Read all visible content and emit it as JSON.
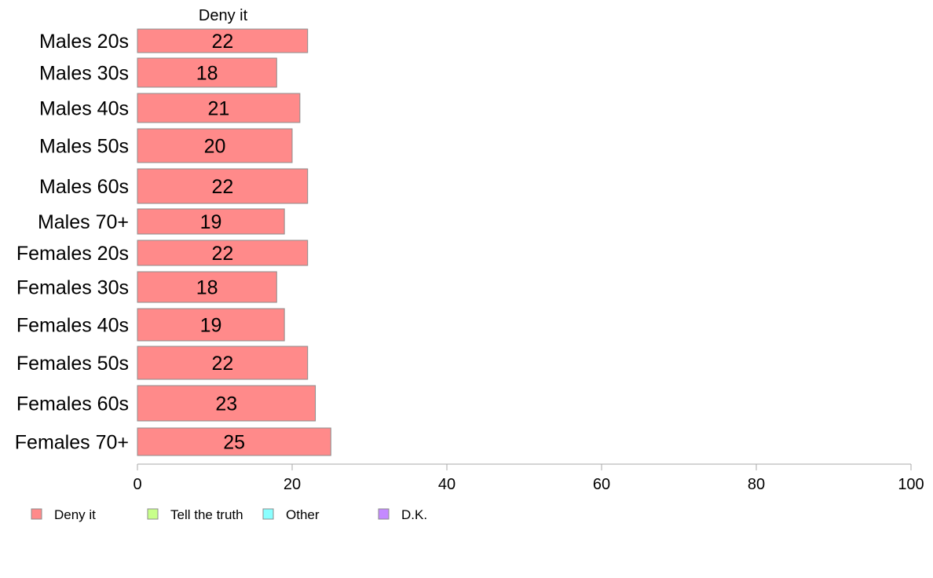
{
  "chart_data": {
    "type": "bar",
    "orientation": "horizontal",
    "stacked": true,
    "panel_title": "Deny it",
    "categories": [
      "Males 20s",
      "Males 30s",
      "Males 40s",
      "Males 50s",
      "Males 60s",
      "Males 70+",
      "Females 20s",
      "Females 30s",
      "Females 40s",
      "Females 50s",
      "Females 60s",
      "Females 70+"
    ],
    "series": [
      {
        "name": "Deny it",
        "color": "#ff8a8a",
        "values": [
          22,
          18,
          21,
          20,
          22,
          19,
          22,
          18,
          19,
          22,
          23,
          25
        ],
        "labels": [
          "22",
          "18",
          "21",
          "20",
          "22",
          "19",
          "22",
          "18",
          "19",
          "22",
          "23",
          "25"
        ]
      }
    ],
    "xlim": [
      0,
      100
    ],
    "xticks": [
      "0",
      "20",
      "40",
      "60",
      "80",
      "100"
    ],
    "grid": false,
    "legend": {
      "placement": "bottom-left",
      "items": [
        {
          "label": "Deny it",
          "color": "#ff8a8a"
        },
        {
          "label": "Tell the truth",
          "color": "#c8ff8a"
        },
        {
          "label": "Other",
          "color": "#8affff"
        },
        {
          "label": "D.K.",
          "color": "#c48aff"
        }
      ]
    }
  }
}
